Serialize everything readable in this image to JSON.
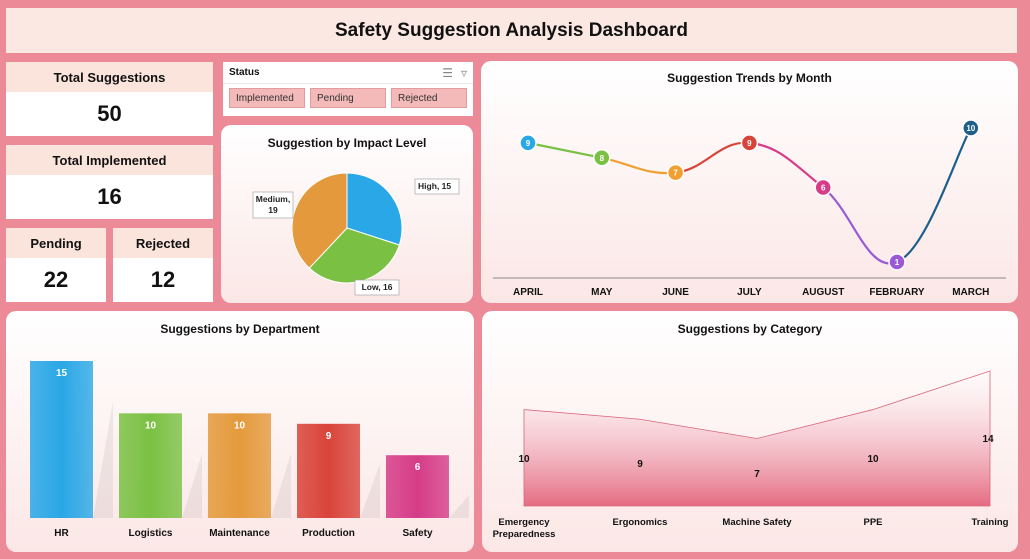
{
  "header": {
    "title": "Safety Suggestion Analysis Dashboard"
  },
  "kpis": {
    "total_suggestions": {
      "label": "Total Suggestions",
      "value": "50"
    },
    "total_implemented": {
      "label": "Total Implemented",
      "value": "16"
    },
    "pending": {
      "label": "Pending",
      "value": "22"
    },
    "rejected": {
      "label": "Rejected",
      "value": "12"
    }
  },
  "status_slicer": {
    "title": "Status",
    "icons": [
      "multi-select-icon",
      "clear-filter-icon"
    ],
    "options": [
      "Implemented",
      "Pending",
      "Rejected"
    ]
  },
  "colors": {
    "background": "#ec8a98",
    "panel_header": "#fbe4dc",
    "slicer_button": "#f4b9b9"
  },
  "chart_data": [
    {
      "id": "impact",
      "type": "pie",
      "title": "Suggestion by Impact Level",
      "categories": [
        "High",
        "Low",
        "Medium"
      ],
      "values": [
        15,
        16,
        19
      ],
      "labels": [
        "High, 15",
        "Low, 16",
        "Medium, 19"
      ],
      "colors": [
        "#2aa7e6",
        "#7ac143",
        "#e49a3c"
      ]
    },
    {
      "id": "trend",
      "type": "line",
      "title": "Suggestion Trends by Month",
      "categories": [
        "APRIL",
        "MAY",
        "JUNE",
        "JULY",
        "AUGUST",
        "FEBRUARY",
        "MARCH"
      ],
      "values": [
        9,
        8,
        7,
        9,
        6,
        1,
        10
      ],
      "point_colors": [
        "#2aa7e6",
        "#7ac143",
        "#f0a030",
        "#d9443a",
        "#d63c88",
        "#9b59d6",
        "#1d5f8a"
      ],
      "ylim": [
        1,
        10
      ]
    },
    {
      "id": "department",
      "type": "bar",
      "title": "Suggestions by Department",
      "categories": [
        "HR",
        "Logistics",
        "Maintenance",
        "Production",
        "Safety"
      ],
      "values": [
        15,
        10,
        10,
        9,
        6
      ],
      "colors": [
        "#2aa7e6",
        "#7ac143",
        "#e49a3c",
        "#d9443a",
        "#d63c88"
      ],
      "ylim": [
        0,
        15
      ]
    },
    {
      "id": "category",
      "type": "area",
      "title": "Suggestions by Category",
      "categories": [
        "Emergency Preparedness",
        "Ergonomics",
        "Machine Safety",
        "PPE",
        "Training"
      ],
      "values": [
        10,
        9,
        7,
        10,
        14
      ],
      "color": "#e56b82"
    }
  ]
}
